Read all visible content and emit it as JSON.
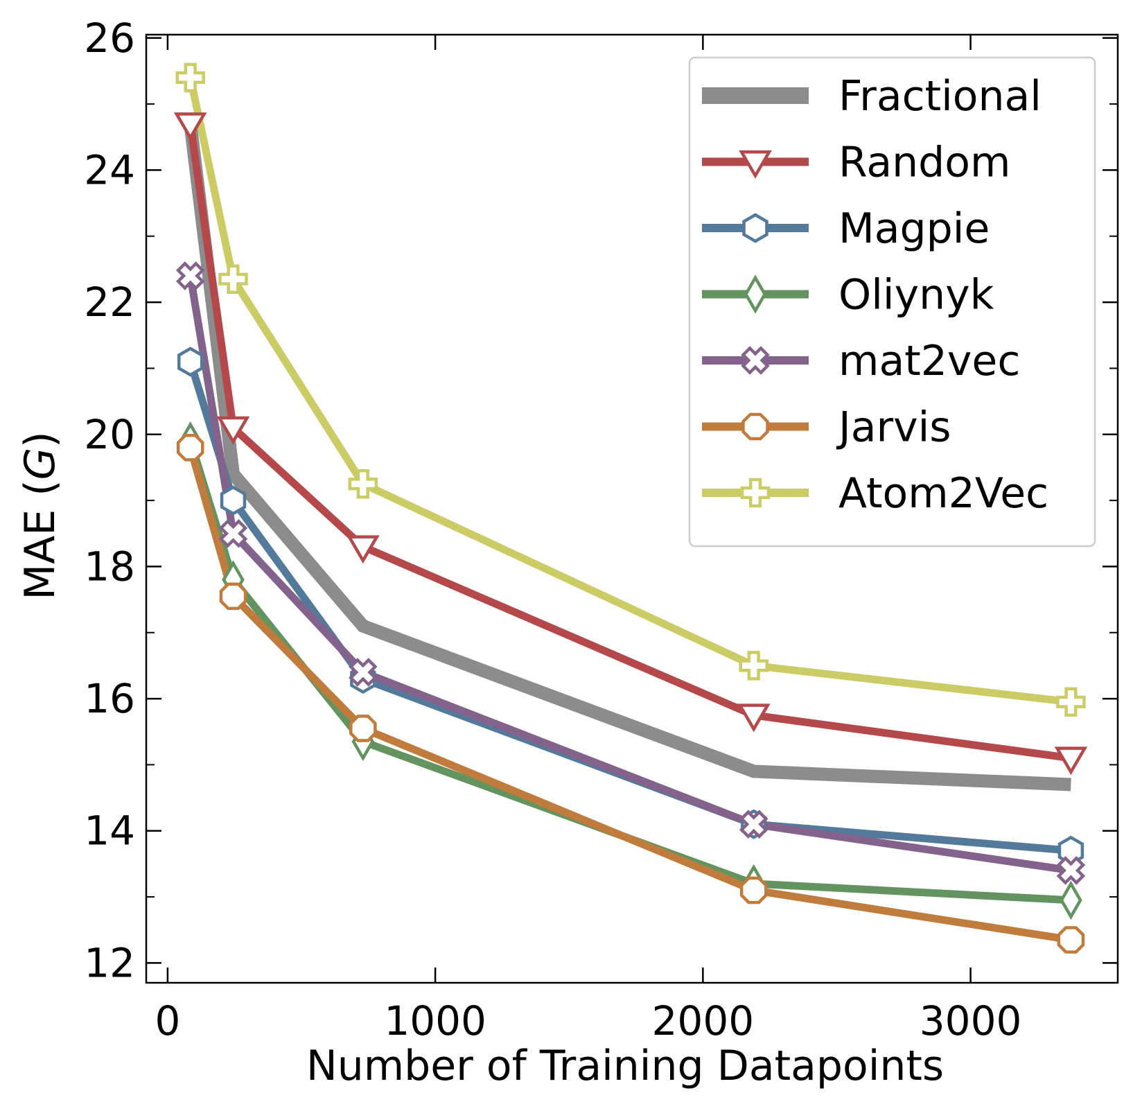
{
  "chart_data": {
    "type": "line",
    "xlabel": "Number of Training Datapoints",
    "ylabel": {
      "prefix": "MAE (",
      "italic": "G",
      "suffix": ")"
    },
    "xlim": [
      -80,
      3550
    ],
    "ylim": [
      11.7,
      26.05
    ],
    "x_ticks": [
      0,
      1000,
      2000,
      3000
    ],
    "y_ticks": [
      12,
      14,
      16,
      18,
      20,
      22,
      24,
      26
    ],
    "y_minor_ticks": [
      13,
      15,
      17,
      19,
      21,
      23,
      25
    ],
    "x_minor_ticks": [],
    "tick_direction": "in",
    "ticks_on_all_sides": true,
    "grid": false,
    "legend_position": "top-right",
    "x": [
      85,
      245,
      730,
      2190,
      3375
    ],
    "series": [
      {
        "name": "Fractional",
        "values": [
          24.7,
          19.4,
          17.1,
          14.9,
          14.7
        ],
        "color": "#8c8c8c",
        "marker": "none"
      },
      {
        "name": "Random",
        "values": [
          24.7,
          20.1,
          18.3,
          15.75,
          15.1
        ],
        "color": "#b5484b",
        "marker": "triangle-down"
      },
      {
        "name": "Magpie",
        "values": [
          21.1,
          19.0,
          16.3,
          14.1,
          13.7
        ],
        "color": "#537a9a",
        "marker": "hexagon"
      },
      {
        "name": "Oliynyk",
        "values": [
          19.9,
          17.8,
          15.35,
          13.2,
          12.95
        ],
        "color": "#63935e",
        "marker": "diamond"
      },
      {
        "name": "mat2vec",
        "values": [
          22.4,
          18.5,
          16.4,
          14.1,
          13.4
        ],
        "color": "#83628c",
        "marker": "x"
      },
      {
        "name": "Jarvis",
        "values": [
          19.8,
          17.55,
          15.55,
          13.1,
          12.35
        ],
        "color": "#c07c3c",
        "marker": "octagon"
      },
      {
        "name": "Atom2Vec",
        "values": [
          25.4,
          22.35,
          19.25,
          16.5,
          15.95
        ],
        "color": "#cccc66",
        "marker": "plus"
      }
    ]
  }
}
